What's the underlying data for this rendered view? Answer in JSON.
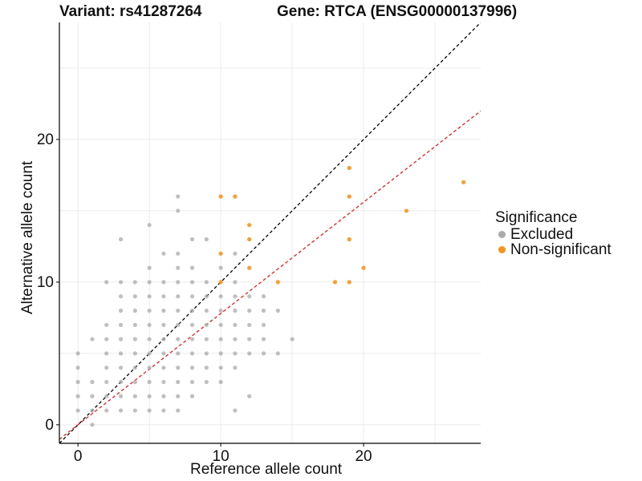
{
  "title_left": "Variant: rs41287264",
  "title_right": "Gene: RTCA (ENSG00000137996)",
  "chart_data": {
    "type": "scatter",
    "xlabel": "Reference allele count",
    "ylabel": "Alternative allele count",
    "xlim": [
      -1.3,
      28.2
    ],
    "ylim": [
      -1.3,
      28.2
    ],
    "x_ticks": [
      "0",
      "10",
      "20"
    ],
    "y_ticks": [
      "0",
      "10",
      "20"
    ],
    "x_tick_values": [
      0,
      10,
      20
    ],
    "y_tick_values": [
      0,
      10,
      20
    ],
    "grid": true,
    "legend_title": "Significance",
    "legend_position": "right",
    "colors": {
      "Excluded": "#aaaaaa",
      "Non-significant": "#f7941d",
      "identity_line": "#000000",
      "fit_line": "#ee1c1c"
    },
    "reference_lines": [
      {
        "name": "identity",
        "slope": 1.0,
        "intercept": 0,
        "style": "dashed",
        "color": "#000000"
      },
      {
        "name": "fit",
        "slope": 0.78,
        "intercept": 0,
        "style": "dashed",
        "color": "#ee1c1c"
      }
    ],
    "series": [
      {
        "name": "Excluded",
        "points": [
          [
            0,
            1
          ],
          [
            0,
            2
          ],
          [
            0,
            3
          ],
          [
            0,
            4
          ],
          [
            0,
            5
          ],
          [
            1,
            0
          ],
          [
            1,
            1
          ],
          [
            1,
            2
          ],
          [
            1,
            3
          ],
          [
            1,
            6
          ],
          [
            2,
            1
          ],
          [
            2,
            2
          ],
          [
            2,
            3
          ],
          [
            2,
            4
          ],
          [
            2,
            5
          ],
          [
            2,
            6
          ],
          [
            2,
            7
          ],
          [
            2,
            10
          ],
          [
            3,
            1
          ],
          [
            3,
            2
          ],
          [
            3,
            3
          ],
          [
            3,
            4
          ],
          [
            3,
            5
          ],
          [
            3,
            6
          ],
          [
            3,
            7
          ],
          [
            3,
            8
          ],
          [
            3,
            9
          ],
          [
            3,
            10
          ],
          [
            3,
            13
          ],
          [
            4,
            1
          ],
          [
            4,
            2
          ],
          [
            4,
            3
          ],
          [
            4,
            4
          ],
          [
            4,
            5
          ],
          [
            4,
            6
          ],
          [
            4,
            7
          ],
          [
            4,
            8
          ],
          [
            4,
            9
          ],
          [
            4,
            10
          ],
          [
            5,
            1
          ],
          [
            5,
            2
          ],
          [
            5,
            3
          ],
          [
            5,
            4
          ],
          [
            5,
            5
          ],
          [
            5,
            6
          ],
          [
            5,
            7
          ],
          [
            5,
            8
          ],
          [
            5,
            9
          ],
          [
            5,
            10
          ],
          [
            5,
            11
          ],
          [
            5,
            14
          ],
          [
            6,
            1
          ],
          [
            6,
            2
          ],
          [
            6,
            3
          ],
          [
            6,
            4
          ],
          [
            6,
            5
          ],
          [
            6,
            6
          ],
          [
            6,
            7
          ],
          [
            6,
            8
          ],
          [
            6,
            9
          ],
          [
            6,
            10
          ],
          [
            6,
            12
          ],
          [
            7,
            1
          ],
          [
            7,
            2
          ],
          [
            7,
            3
          ],
          [
            7,
            4
          ],
          [
            7,
            5
          ],
          [
            7,
            6
          ],
          [
            7,
            7
          ],
          [
            7,
            8
          ],
          [
            7,
            9
          ],
          [
            7,
            10
          ],
          [
            7,
            11
          ],
          [
            7,
            12
          ],
          [
            7,
            15
          ],
          [
            7,
            16
          ],
          [
            8,
            2
          ],
          [
            8,
            3
          ],
          [
            8,
            4
          ],
          [
            8,
            5
          ],
          [
            8,
            6
          ],
          [
            8,
            7
          ],
          [
            8,
            8
          ],
          [
            8,
            9
          ],
          [
            8,
            10
          ],
          [
            8,
            11
          ],
          [
            8,
            13
          ],
          [
            9,
            3
          ],
          [
            9,
            4
          ],
          [
            9,
            5
          ],
          [
            9,
            6
          ],
          [
            9,
            7
          ],
          [
            9,
            8
          ],
          [
            9,
            9
          ],
          [
            9,
            10
          ],
          [
            9,
            13
          ],
          [
            10,
            3
          ],
          [
            10,
            4
          ],
          [
            10,
            5
          ],
          [
            10,
            6
          ],
          [
            10,
            7
          ],
          [
            10,
            8
          ],
          [
            10,
            9
          ],
          [
            10,
            11
          ],
          [
            11,
            1
          ],
          [
            11,
            4
          ],
          [
            11,
            5
          ],
          [
            11,
            6
          ],
          [
            11,
            7
          ],
          [
            11,
            8
          ],
          [
            11,
            9
          ],
          [
            11,
            10
          ],
          [
            11,
            12
          ],
          [
            12,
            2
          ],
          [
            12,
            5
          ],
          [
            12,
            6
          ],
          [
            12,
            7
          ],
          [
            12,
            8
          ],
          [
            12,
            9
          ],
          [
            13,
            5
          ],
          [
            13,
            6
          ],
          [
            13,
            7
          ],
          [
            13,
            8
          ],
          [
            13,
            9
          ],
          [
            14,
            5
          ],
          [
            14,
            8
          ],
          [
            15,
            6
          ]
        ]
      },
      {
        "name": "Non-significant",
        "points": [
          [
            10,
            10
          ],
          [
            10,
            12
          ],
          [
            10,
            16
          ],
          [
            11,
            16
          ],
          [
            12,
            11
          ],
          [
            12,
            13
          ],
          [
            12,
            14
          ],
          [
            14,
            10
          ],
          [
            18,
            10
          ],
          [
            19,
            10
          ],
          [
            19,
            13
          ],
          [
            19,
            16
          ],
          [
            19,
            18
          ],
          [
            20,
            11
          ],
          [
            23,
            15
          ],
          [
            27,
            17
          ]
        ]
      }
    ]
  }
}
